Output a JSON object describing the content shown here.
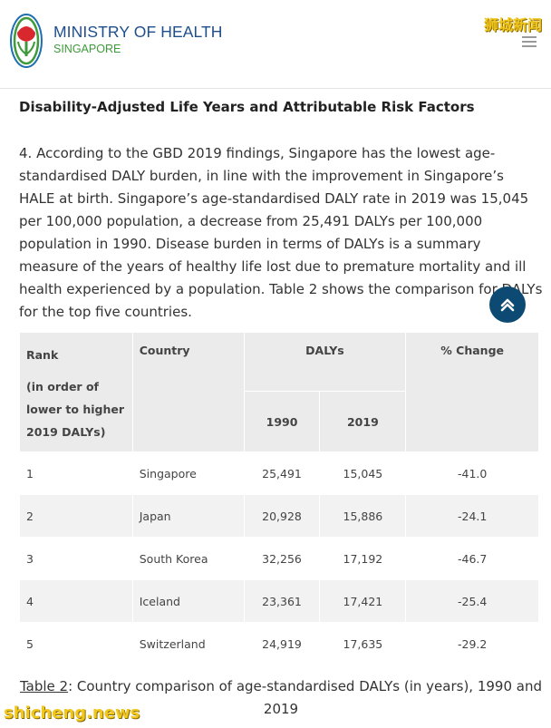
{
  "header": {
    "title": "MINISTRY OF HEALTH",
    "subtitle": "SINGAPORE",
    "watermark": "狮城新闻"
  },
  "article": {
    "heading": "Disability-Adjusted Life Years and Attributable Risk Factors",
    "paragraph": "4. According to the GBD 2019 findings, Singapore has the lowest age-standardised DALY burden, in line with the improvement in Singapore’s HALE at birth. Singapore’s age-standardised DALY rate in 2019 was 15,045 per 100,000 population, a decrease from 25,491 DALYs per 100,000 population in 1990. Disease burden in terms of DALYs is a summary measure of the years of healthy life lost due to premature mortality and ill health experienced by a population. Table 2 shows the comparison for DALYs for the top five countries."
  },
  "table": {
    "rank_header": "Rank",
    "rank_note": "(in order of lower to higher 2019 DALYs)",
    "country_header": "Country",
    "dalys_header": "DALYs",
    "year1": "1990",
    "year2": "2019",
    "change_header": "% Change",
    "rows": [
      {
        "rank": "1",
        "country": "Singapore",
        "y1990": "25,491",
        "y2019": "15,045",
        "change": "-41.0"
      },
      {
        "rank": "2",
        "country": "Japan",
        "y1990": "20,928",
        "y2019": "15,886",
        "change": "-24.1"
      },
      {
        "rank": "3",
        "country": "South Korea",
        "y1990": "32,256",
        "y2019": "17,192",
        "change": "-46.7"
      },
      {
        "rank": "4",
        "country": "Iceland",
        "y1990": "23,361",
        "y2019": "17,421",
        "change": "-25.4"
      },
      {
        "rank": "5",
        "country": "Switzerland",
        "y1990": "24,919",
        "y2019": "17,635",
        "change": "-29.2"
      }
    ]
  },
  "caption": {
    "ref": "Table 2",
    "text": ": Country comparison of age-standardised DALYs (in years), 1990 and 2019"
  },
  "footer": {
    "site_watermark": "shicheng.news"
  },
  "colors": {
    "brand_blue": "#1f4e8c",
    "brand_green": "#3e9a3a",
    "scroll_button": "#0d4a73"
  },
  "icons": {
    "logo": "moh-logo-icon",
    "menu": "menu-icon",
    "scroll_top": "chevron-up-icon"
  }
}
